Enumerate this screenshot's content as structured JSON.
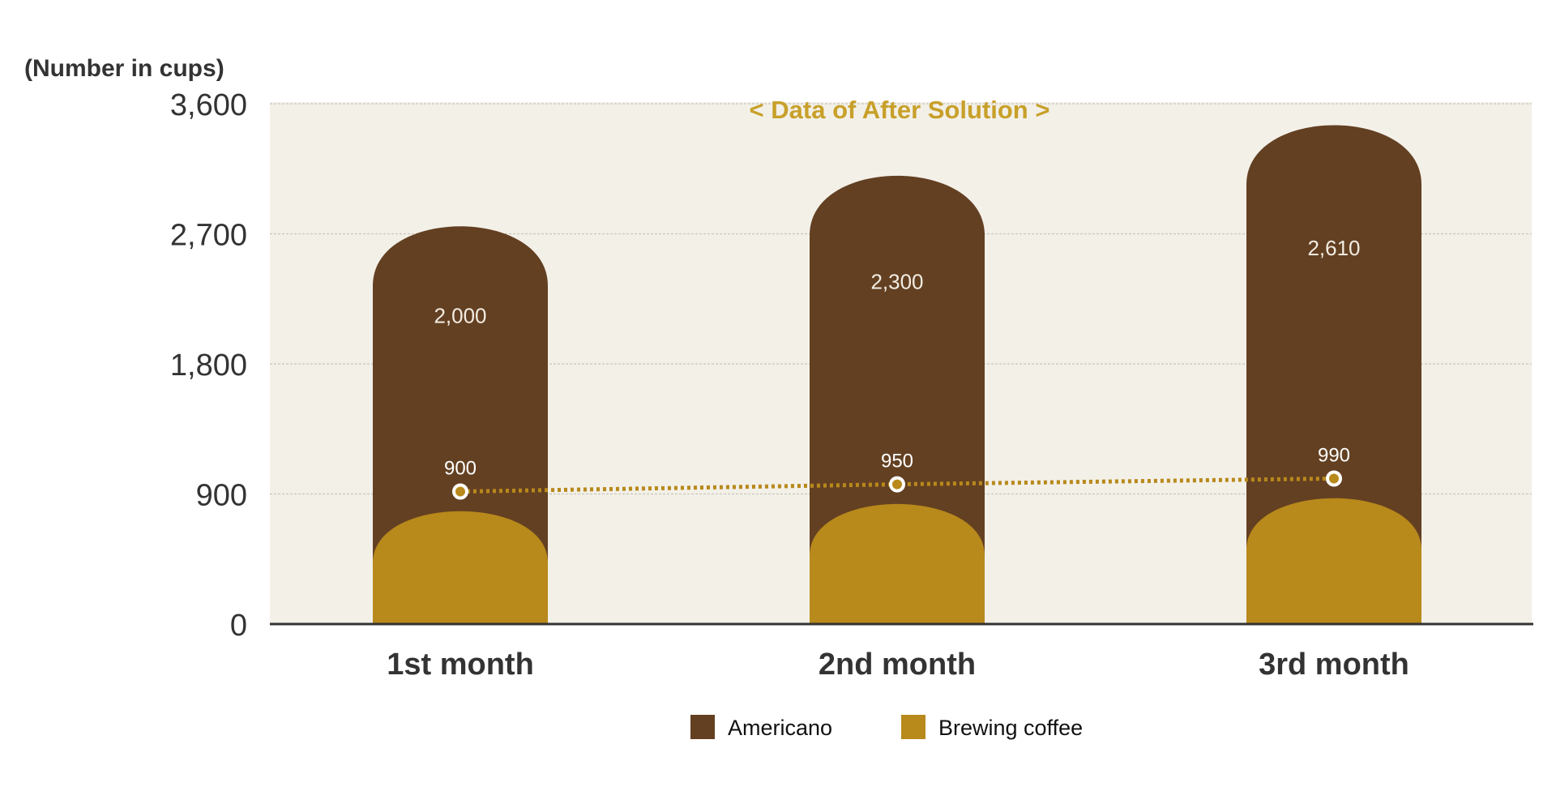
{
  "chart_data": {
    "type": "bar",
    "title": "< Data of After Solution >",
    "ylabel": "(Number in cups)",
    "xlabel": "",
    "categories": [
      "1st month",
      "2nd month",
      "3rd month"
    ],
    "series": [
      {
        "name": "Americano",
        "values": [
          2000,
          2300,
          2610
        ],
        "value_labels": [
          "2,000",
          "2,300",
          "2,610"
        ],
        "color": "#634022"
      },
      {
        "name": "Brewing coffee",
        "values": [
          900,
          950,
          990
        ],
        "value_labels": [
          "900",
          "950",
          "990"
        ],
        "color": "#b8891b"
      }
    ],
    "stacked": true,
    "line_series": "Brewing coffee",
    "ylim": [
      0,
      3600
    ],
    "yticks": [
      0,
      900,
      1800,
      2700,
      3600
    ],
    "ytick_labels": [
      "0",
      "900",
      "1,800",
      "2,700",
      "3,600"
    ],
    "grid": true,
    "legend": "bottom-center",
    "colors": {
      "plot_bg": "#f3f0e8",
      "title": "#c8a02a",
      "line": "#b8891b",
      "grid": "#c9c6bd",
      "axis": "#333333",
      "text": "#333333"
    }
  }
}
